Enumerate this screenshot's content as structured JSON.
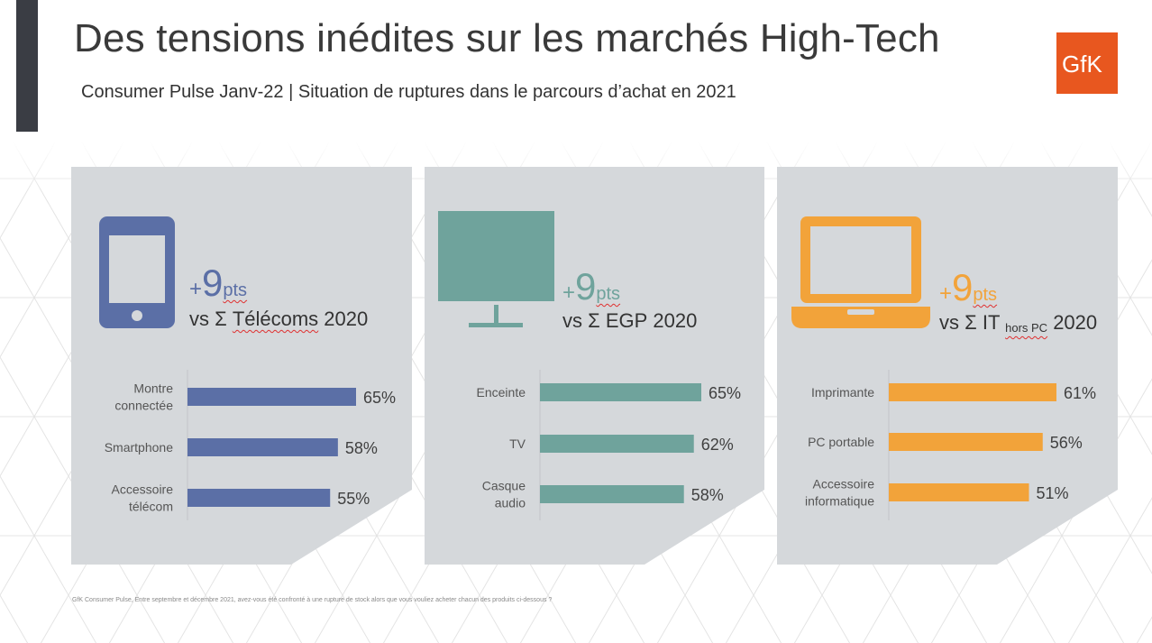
{
  "slide": {
    "title": "Des tensions inédites sur les marchés High-Tech",
    "subtitle": "Consumer Pulse Janv-22 | Situation de ruptures dans le parcours d’achat en 2021",
    "logo_text": "GfK",
    "footnote": "GfK Consumer Pulse, Entre septembre et décembre 2021, avez-vous été confronté à une rupture de stock alors que vous vouliez acheter chacun des produits ci-dessous ?"
  },
  "colors": {
    "telecom": "#5b6fa6",
    "egp": "#6fa39c",
    "it": "#f2a33a",
    "panel": "#d5d8db",
    "logo": "#e8571f"
  },
  "panels": [
    {
      "icon": "smartphone-icon",
      "plus": "+",
      "number": "9",
      "unit": "pts",
      "vs_prefix": "vs Σ ",
      "vs_main": "Télécoms",
      "vs_small": "",
      "vs_year": " 2020"
    },
    {
      "icon": "tv-icon",
      "plus": "+",
      "number": "9",
      "unit": "pts",
      "vs_prefix": "vs Σ ",
      "vs_main": "EGP",
      "vs_small": "",
      "vs_year": " 2020"
    },
    {
      "icon": "laptop-icon",
      "plus": "+",
      "number": "9",
      "unit": "pts",
      "vs_prefix": "vs Σ ",
      "vs_main": "IT",
      "vs_small": "hors PC",
      "vs_year": " 2020"
    }
  ],
  "chart_data": [
    {
      "type": "bar",
      "orientation": "horizontal",
      "categories": [
        [
          "Montre",
          "connectée"
        ],
        [
          "Smartphone"
        ],
        [
          "Accessoire",
          "télécom"
        ]
      ],
      "values": [
        65,
        58,
        55
      ],
      "value_labels": [
        "65%",
        "58%",
        "55%"
      ],
      "color": "#5b6fa6"
    },
    {
      "type": "bar",
      "orientation": "horizontal",
      "categories": [
        [
          "Enceinte"
        ],
        [
          "TV"
        ],
        [
          "Casque",
          "audio"
        ]
      ],
      "values": [
        65,
        62,
        58
      ],
      "value_labels": [
        "65%",
        "62%",
        "58%"
      ],
      "color": "#6fa39c"
    },
    {
      "type": "bar",
      "orientation": "horizontal",
      "categories": [
        [
          "Imprimante"
        ],
        [
          "PC portable"
        ],
        [
          "Accessoire",
          "informatique"
        ]
      ],
      "values": [
        61,
        56,
        51
      ],
      "value_labels": [
        "61%",
        "56%",
        "51%"
      ],
      "color": "#f2a33a"
    }
  ]
}
